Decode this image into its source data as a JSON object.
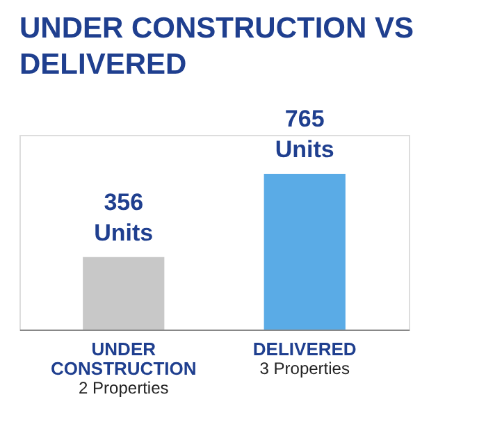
{
  "chart_data": {
    "type": "bar",
    "title": "UNDER CONSTRUCTION VS DELIVERED",
    "categories": [
      "UNDER CONSTRUCTION",
      "DELIVERED"
    ],
    "values": [
      356,
      765
    ],
    "colors": [
      "#c8c8c8",
      "#5aabe6"
    ],
    "value_labels": [
      "356 Units",
      "765 Units"
    ],
    "annotations": [
      "2 Properties",
      "3 Properties"
    ]
  }
}
